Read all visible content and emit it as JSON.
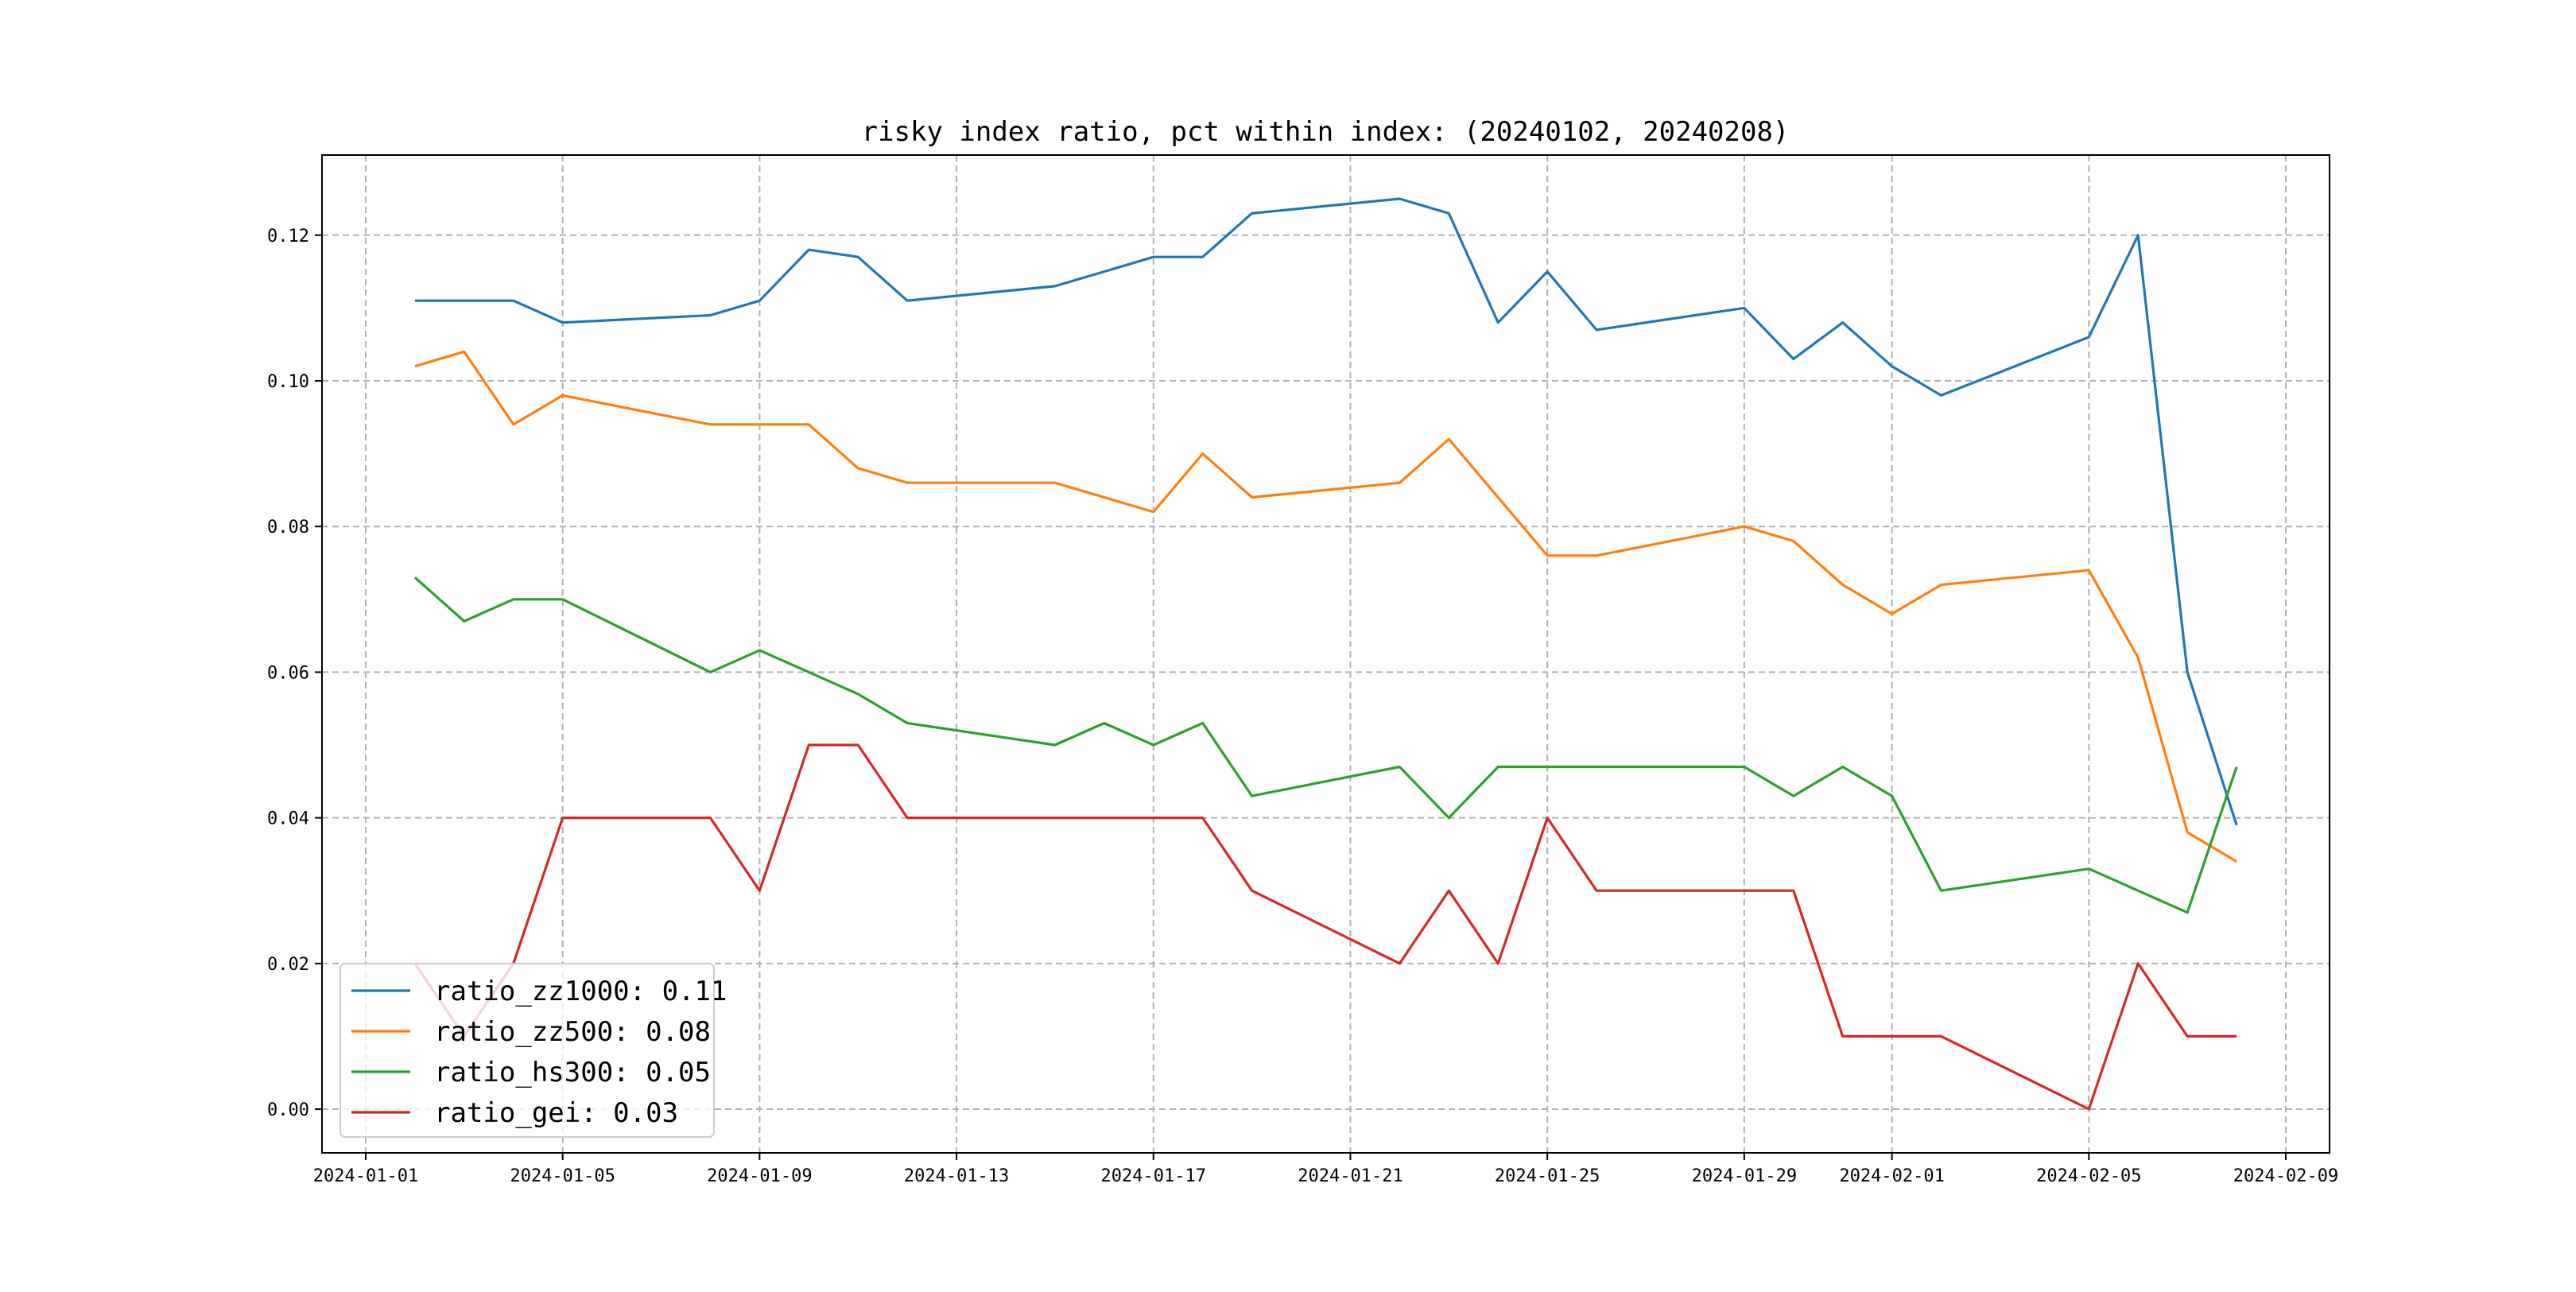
{
  "chart_data": {
    "type": "line",
    "title": "risky index ratio, pct within index: (20240102, 20240208)",
    "xlabel": "",
    "ylabel": "",
    "xlim": [
      "2024-01-01",
      "2024-02-09"
    ],
    "ylim": [
      -0.006,
      0.131
    ],
    "grid": true,
    "legend_position": "lower-left",
    "x_ticks": [
      "2024-01-01",
      "2024-01-05",
      "2024-01-09",
      "2024-01-13",
      "2024-01-17",
      "2024-01-21",
      "2024-01-25",
      "2024-01-29",
      "2024-02-01",
      "2024-02-05",
      "2024-02-09"
    ],
    "y_ticks": [
      "0.00",
      "0.02",
      "0.04",
      "0.06",
      "0.08",
      "0.10",
      "0.12"
    ],
    "x": [
      "2024-01-02",
      "2024-01-03",
      "2024-01-04",
      "2024-01-05",
      "2024-01-08",
      "2024-01-09",
      "2024-01-10",
      "2024-01-11",
      "2024-01-12",
      "2024-01-15",
      "2024-01-16",
      "2024-01-17",
      "2024-01-18",
      "2024-01-19",
      "2024-01-22",
      "2024-01-23",
      "2024-01-24",
      "2024-01-25",
      "2024-01-26",
      "2024-01-29",
      "2024-01-30",
      "2024-01-31",
      "2024-02-01",
      "2024-02-02",
      "2024-02-05",
      "2024-02-06",
      "2024-02-07",
      "2024-02-08"
    ],
    "series": [
      {
        "name": "ratio_zz1000: 0.11",
        "color": "#1f77b4",
        "values": [
          0.111,
          0.111,
          0.111,
          0.108,
          0.109,
          0.111,
          0.118,
          0.117,
          0.111,
          0.113,
          0.115,
          0.117,
          0.117,
          0.123,
          0.125,
          0.123,
          0.108,
          0.115,
          0.107,
          0.11,
          0.103,
          0.108,
          0.102,
          0.098,
          0.106,
          0.12,
          0.06,
          0.039
        ]
      },
      {
        "name": "ratio_zz500: 0.08",
        "color": "#ff7f0e",
        "values": [
          0.102,
          0.104,
          0.094,
          0.098,
          0.094,
          0.094,
          0.094,
          0.088,
          0.086,
          0.086,
          0.084,
          0.082,
          0.09,
          0.084,
          0.086,
          0.092,
          0.084,
          0.076,
          0.076,
          0.08,
          0.078,
          0.072,
          0.068,
          0.072,
          0.074,
          0.062,
          0.038,
          0.034
        ]
      },
      {
        "name": "ratio_hs300: 0.05",
        "color": "#2ca02c",
        "values": [
          0.073,
          0.067,
          0.07,
          0.07,
          0.06,
          0.063,
          0.06,
          0.057,
          0.053,
          0.05,
          0.053,
          0.05,
          0.053,
          0.043,
          0.047,
          0.04,
          0.047,
          0.047,
          0.047,
          0.047,
          0.043,
          0.047,
          0.043,
          0.03,
          0.033,
          0.03,
          0.027,
          0.047
        ]
      },
      {
        "name": "ratio_gei: 0.03",
        "color": "#d62728",
        "values": [
          0.02,
          0.01,
          0.02,
          0.04,
          0.04,
          0.03,
          0.05,
          0.05,
          0.04,
          0.04,
          0.04,
          0.04,
          0.04,
          0.03,
          0.02,
          0.03,
          0.02,
          0.04,
          0.03,
          0.03,
          0.03,
          0.01,
          0.01,
          0.01,
          0.0,
          0.02,
          0.01,
          0.01
        ]
      }
    ]
  }
}
